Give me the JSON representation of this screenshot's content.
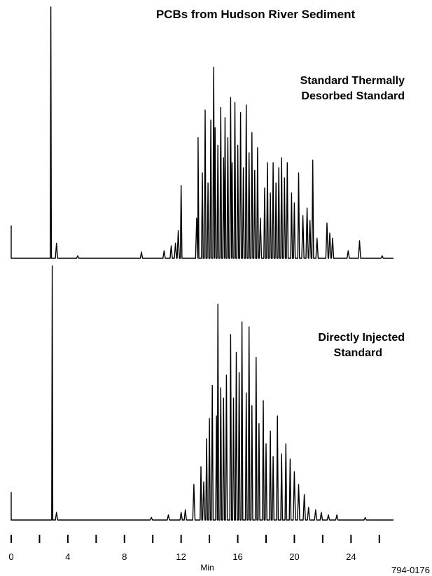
{
  "chart_data": {
    "type": "line",
    "title": "PCBs from Hudson  River Sediment",
    "xlabel": "Min",
    "ylabel": "",
    "xlim": [
      0,
      27
    ],
    "x_ticks": [
      0,
      2,
      4,
      6,
      8,
      10,
      12,
      14,
      16,
      18,
      20,
      22,
      24,
      26
    ],
    "x_tick_labels": [
      {
        "x": 0,
        "label": "0"
      },
      {
        "x": 4,
        "label": "4"
      },
      {
        "x": 8,
        "label": "8"
      },
      {
        "x": 12,
        "label": "12"
      },
      {
        "x": 16,
        "label": "16"
      },
      {
        "x": 20,
        "label": "20"
      },
      {
        "x": 24,
        "label": "24"
      }
    ],
    "figure_code": "794-0176",
    "panels": [
      {
        "label_lines": [
          "Standard Thermally",
          "Desorbed Standard"
        ],
        "start_offset_height": 0.13,
        "baseline": 0.0,
        "peaks": [
          [
            2.8,
            1.0
          ],
          [
            3.2,
            0.06
          ],
          [
            4.7,
            0.01
          ],
          [
            9.2,
            0.025
          ],
          [
            10.8,
            0.03
          ],
          [
            11.3,
            0.05
          ],
          [
            11.6,
            0.06
          ],
          [
            11.8,
            0.11
          ],
          [
            12.0,
            0.29
          ],
          [
            13.1,
            0.16
          ],
          [
            13.2,
            0.48
          ],
          [
            13.5,
            0.34
          ],
          [
            13.7,
            0.59
          ],
          [
            13.9,
            0.3
          ],
          [
            14.1,
            0.55
          ],
          [
            14.3,
            0.76
          ],
          [
            14.4,
            0.52
          ],
          [
            14.6,
            0.45
          ],
          [
            14.8,
            0.6
          ],
          [
            15.0,
            0.4
          ],
          [
            15.1,
            0.56
          ],
          [
            15.3,
            0.48
          ],
          [
            15.5,
            0.64
          ],
          [
            15.6,
            0.38
          ],
          [
            15.8,
            0.62
          ],
          [
            16.0,
            0.45
          ],
          [
            16.2,
            0.58
          ],
          [
            16.4,
            0.36
          ],
          [
            16.6,
            0.61
          ],
          [
            16.8,
            0.42
          ],
          [
            17.0,
            0.5
          ],
          [
            17.2,
            0.35
          ],
          [
            17.4,
            0.44
          ],
          [
            17.6,
            0.16
          ],
          [
            17.9,
            0.28
          ],
          [
            18.1,
            0.38
          ],
          [
            18.3,
            0.26
          ],
          [
            18.5,
            0.38
          ],
          [
            18.7,
            0.3
          ],
          [
            18.9,
            0.36
          ],
          [
            19.1,
            0.4
          ],
          [
            19.3,
            0.32
          ],
          [
            19.5,
            0.38
          ],
          [
            19.8,
            0.26
          ],
          [
            20.0,
            0.22
          ],
          [
            20.3,
            0.34
          ],
          [
            20.6,
            0.17
          ],
          [
            20.9,
            0.2
          ],
          [
            21.1,
            0.15
          ],
          [
            21.3,
            0.39
          ],
          [
            21.6,
            0.08
          ],
          [
            22.3,
            0.14
          ],
          [
            22.5,
            0.1
          ],
          [
            22.7,
            0.08
          ],
          [
            23.8,
            0.03
          ],
          [
            24.6,
            0.07
          ],
          [
            26.2,
            0.01
          ]
        ]
      },
      {
        "label_lines": [
          "Directly Injected",
          "Standard"
        ],
        "start_offset_height": 0.11,
        "baseline": 0.0,
        "peaks": [
          [
            2.9,
            1.0
          ],
          [
            3.2,
            0.03
          ],
          [
            9.9,
            0.01
          ],
          [
            11.1,
            0.02
          ],
          [
            12.0,
            0.03
          ],
          [
            12.3,
            0.04
          ],
          [
            12.9,
            0.14
          ],
          [
            13.4,
            0.21
          ],
          [
            13.6,
            0.15
          ],
          [
            13.8,
            0.32
          ],
          [
            14.0,
            0.4
          ],
          [
            14.2,
            0.53
          ],
          [
            14.5,
            0.41
          ],
          [
            14.6,
            0.85
          ],
          [
            14.8,
            0.52
          ],
          [
            15.0,
            0.48
          ],
          [
            15.2,
            0.57
          ],
          [
            15.5,
            0.73
          ],
          [
            15.7,
            0.48
          ],
          [
            15.9,
            0.66
          ],
          [
            16.1,
            0.58
          ],
          [
            16.3,
            0.78
          ],
          [
            16.6,
            0.5
          ],
          [
            16.8,
            0.76
          ],
          [
            17.0,
            0.45
          ],
          [
            17.3,
            0.64
          ],
          [
            17.5,
            0.38
          ],
          [
            17.8,
            0.47
          ],
          [
            18.0,
            0.3
          ],
          [
            18.3,
            0.35
          ],
          [
            18.5,
            0.25
          ],
          [
            18.8,
            0.41
          ],
          [
            19.1,
            0.26
          ],
          [
            19.4,
            0.3
          ],
          [
            19.7,
            0.24
          ],
          [
            20.0,
            0.19
          ],
          [
            20.3,
            0.14
          ],
          [
            20.7,
            0.1
          ],
          [
            21.0,
            0.05
          ],
          [
            21.5,
            0.04
          ],
          [
            21.9,
            0.03
          ],
          [
            22.4,
            0.02
          ],
          [
            23.0,
            0.02
          ],
          [
            25.0,
            0.01
          ]
        ]
      }
    ]
  }
}
